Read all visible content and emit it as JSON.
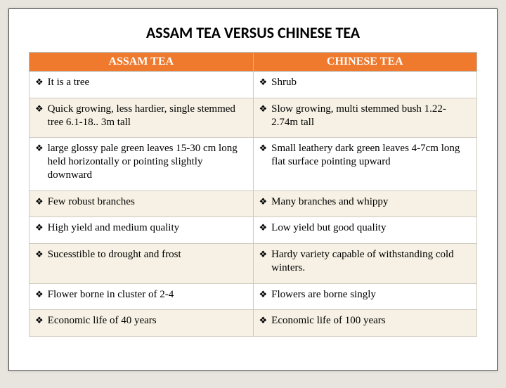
{
  "title": "ASSAM TEA VERSUS CHINESE TEA",
  "columns": [
    "ASSAM TEA",
    "CHINESE TEA"
  ],
  "rows": [
    {
      "alt": false,
      "left": "It is a tree",
      "right": "Shrub"
    },
    {
      "alt": true,
      "left": "Quick growing, less hardier, single stemmed tree 6.1-18.. 3m tall",
      "right": "Slow growing, multi stemmed bush 1.22-2.74m tall"
    },
    {
      "alt": false,
      "left": "large glossy  pale green leaves 15-30 cm long held horizontally or pointing slightly downward",
      "right": "Small leathery dark green  leaves 4-7cm long flat surface pointing upward"
    },
    {
      "alt": true,
      "left": "Few robust branches",
      "right": "Many branches and whippy"
    },
    {
      "alt": false,
      "left": "High yield and medium quality",
      "right": "Low yield but good quality"
    },
    {
      "alt": true,
      "left": "Sucesstible to drought and frost",
      "right": "Hardy variety capable of withstanding cold winters."
    },
    {
      "alt": false,
      "left": "Flower borne in cluster of 2-4",
      "right": "Flowers are borne singly"
    },
    {
      "alt": true,
      "left": "Economic life of 40 years",
      "right": "Economic life of 100 years"
    }
  ],
  "style": {
    "header_bg": "#ef792d",
    "header_text": "#ffffff",
    "alt_row_bg": "#f6f1e4",
    "row_bg": "#ffffff",
    "border_color": "#cfcabf",
    "slide_bg": "#ffffff",
    "page_bg": "#e8e5de",
    "title_fontsize": 22,
    "cell_fontsize": 15,
    "bullet_symbol": "❖"
  }
}
